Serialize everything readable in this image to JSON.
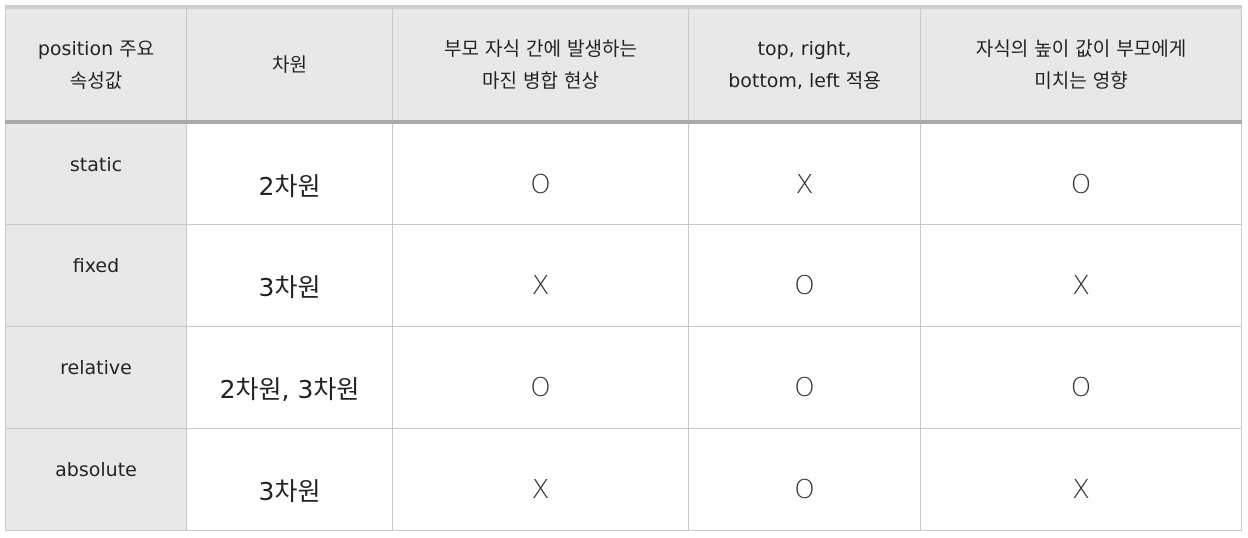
{
  "table": {
    "headers": [
      {
        "line1": "position 주요",
        "line2": "속성값"
      },
      {
        "line1": "차원",
        "line2": ""
      },
      {
        "line1": "부모 자식 간에 발생하는",
        "line2": "마진 병합 현상"
      },
      {
        "line1": "top, right,",
        "line2": "bottom, left 적용"
      },
      {
        "line1": "자식의 높이 값이 부모에게",
        "line2": "미치는 영향"
      }
    ],
    "rows": [
      {
        "value": "static",
        "dimension": "2차원",
        "margin_collapse": "O",
        "offset_apply": "X",
        "child_height_effect": "O"
      },
      {
        "value": "fixed",
        "dimension": "3차원",
        "margin_collapse": "X",
        "offset_apply": "O",
        "child_height_effect": "X"
      },
      {
        "value": "relative",
        "dimension": "2차원, 3차원",
        "margin_collapse": "O",
        "offset_apply": "O",
        "child_height_effect": "O"
      },
      {
        "value": "absolute",
        "dimension": "3차원",
        "margin_collapse": "X",
        "offset_apply": "O",
        "child_height_effect": "X"
      }
    ]
  }
}
